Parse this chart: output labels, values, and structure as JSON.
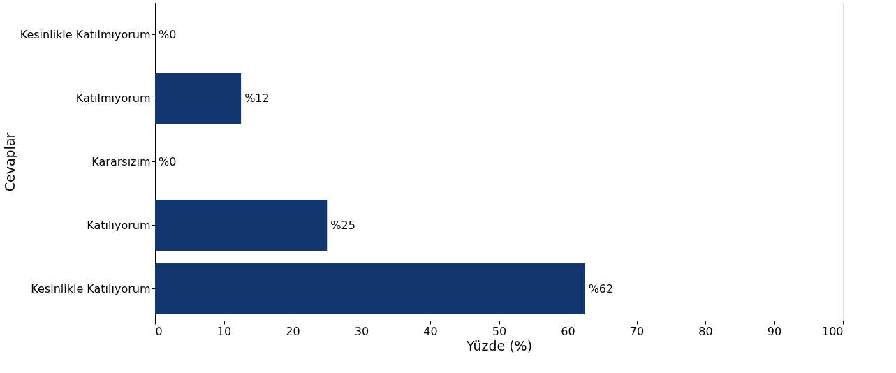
{
  "chart_data": {
    "type": "bar",
    "orientation": "horizontal",
    "categories": [
      "Kesinlikle Katılmıyorum",
      "Katılmıyorum",
      "Kararsızım",
      "Katılıyorum",
      "Kesinlikle Katılıyorum"
    ],
    "values": [
      0,
      12.5,
      0,
      25,
      62.5
    ],
    "value_labels": [
      "%0",
      "%12",
      "%0",
      "%25",
      "%62"
    ],
    "color": "#12366f",
    "xlim": [
      0,
      100
    ],
    "xticks": [
      0,
      10,
      20,
      30,
      40,
      50,
      60,
      70,
      80,
      90,
      100
    ],
    "xlabel": "Yüzde (%)",
    "ylabel": "Cevaplar",
    "grid": false
  }
}
